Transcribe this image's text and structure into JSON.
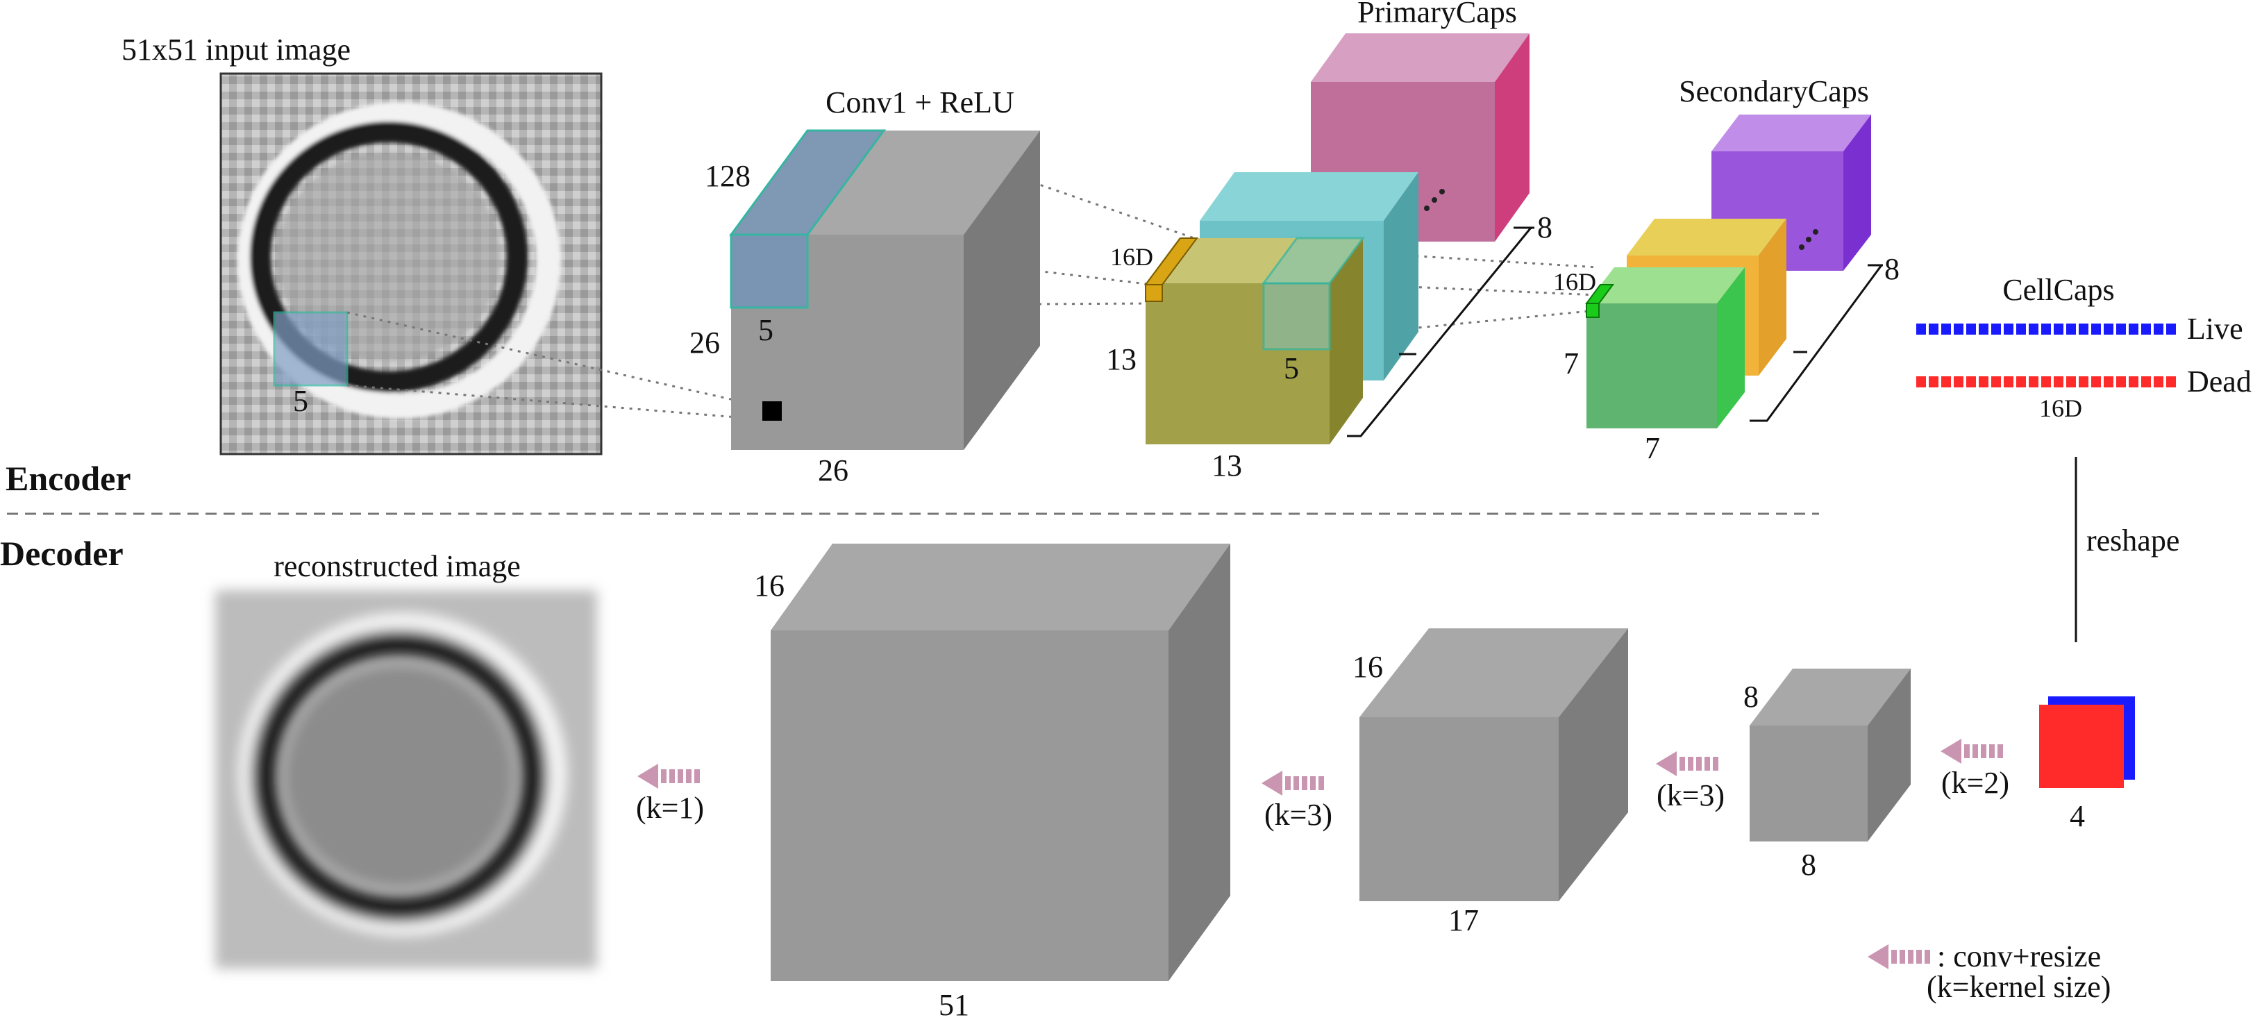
{
  "sections": {
    "encoder": "Encoder",
    "decoder": "Decoder"
  },
  "input": {
    "title": "51x51 input image",
    "kernel": "5"
  },
  "conv1": {
    "title": "Conv1 + ReLU",
    "depth": "128",
    "height": "26",
    "width": "26",
    "kernel": "5"
  },
  "primary_caps": {
    "title": "PrimaryCaps",
    "dim": "16D",
    "height": "13",
    "width": "13",
    "kernel": "5",
    "count": "8"
  },
  "secondary_caps": {
    "title": "SecondaryCaps",
    "dim": "16D",
    "height": "7",
    "width": "7",
    "count": "8"
  },
  "cell_caps": {
    "title": "CellCaps",
    "live": "Live",
    "dead": "Dead",
    "dim": "16D"
  },
  "reshape": "reshape",
  "decoder": {
    "recon_title": "reconstructed image",
    "b51": {
      "depth": "16",
      "width": "51"
    },
    "b17": {
      "depth": "16",
      "width": "17"
    },
    "b8": {
      "depth": "8",
      "width": "8"
    },
    "b4": {
      "width": "4"
    },
    "k1": "(k=1)",
    "k3a": "(k=3)",
    "k3b": "(k=3)",
    "k2": "(k=2)"
  },
  "legend": {
    "line1": ": conv+resize",
    "line2": "(k=kernel size)"
  },
  "colors": {
    "live": "#1a1aff",
    "dead": "#ff2b2b",
    "arrow": "#c995b1",
    "primary_pink": "#bf6f9a",
    "primary_teal": "#6cc2c6",
    "primary_olive": "#a2a14a",
    "secondary_purple": "#9a55dd",
    "secondary_yellow": "#e8c648",
    "secondary_green": "#5fb46f"
  }
}
